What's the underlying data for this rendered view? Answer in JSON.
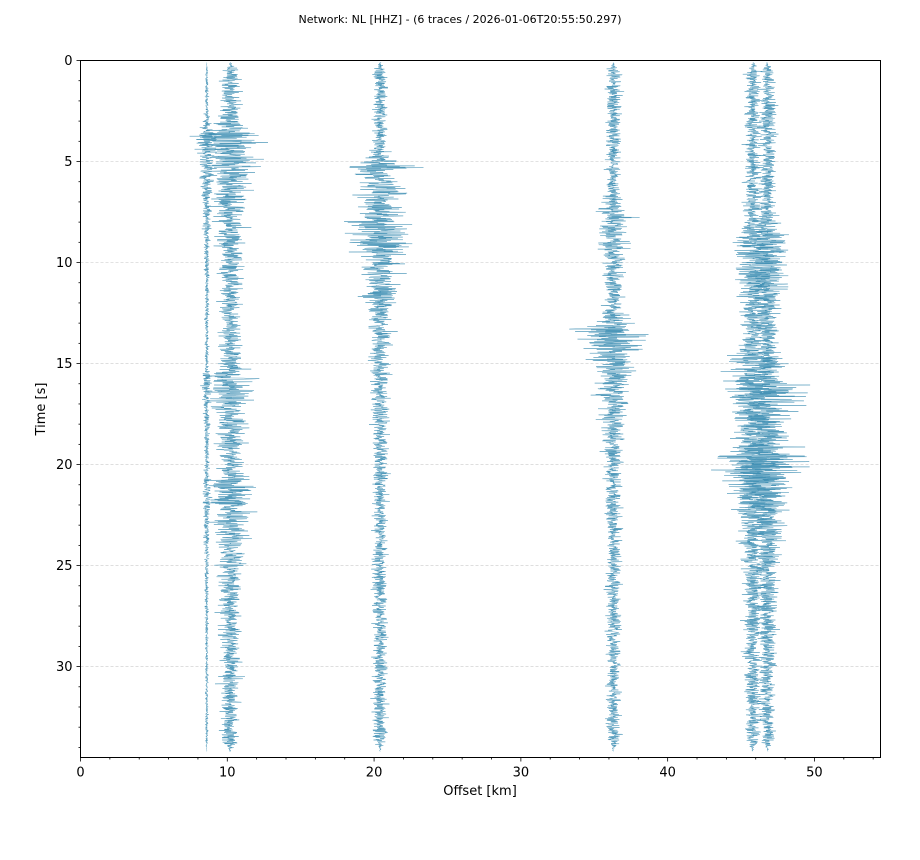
{
  "chart_data": {
    "type": "line",
    "title": "Network: NL [HHZ] - (6 traces / 2026-01-06T20:55:50.297)",
    "xlabel": "Offset [km]",
    "ylabel": "Time [s]",
    "xlim": [
      0,
      54.5
    ],
    "ylim": [
      34.5,
      0
    ],
    "y_inverted": true,
    "xticks": [
      0,
      10,
      20,
      30,
      40,
      50
    ],
    "yticks": [
      0,
      5,
      10,
      15,
      20,
      25,
      30
    ],
    "x_minor_step": 2,
    "y_minor_step": 1,
    "grid": "horizontal",
    "legend": "none",
    "trace_color": "#3f8fb4",
    "series": [
      {
        "offset": 8.6,
        "amplitude": 0.2,
        "bursts": [
          {
            "t": 3.6,
            "amp": 1.6
          },
          {
            "t": 15.5,
            "amp": 0.55
          },
          {
            "t": 21.0,
            "amp": 0.4
          }
        ]
      },
      {
        "offset": 10.2,
        "amplitude": 1.3,
        "bursts": [
          {
            "t": 3.6,
            "amp": 4.0
          },
          {
            "t": 15.5,
            "amp": 2.0
          },
          {
            "t": 21.0,
            "amp": 2.2
          }
        ]
      },
      {
        "offset": 20.4,
        "amplitude": 1.0,
        "bursts": [
          {
            "t": 5.2,
            "amp": 3.0
          },
          {
            "t": 7.9,
            "amp": 3.5
          }
        ]
      },
      {
        "offset": 36.3,
        "amplitude": 1.0,
        "bursts": [
          {
            "t": 7.5,
            "amp": 2.0
          },
          {
            "t": 13.2,
            "amp": 4.0
          }
        ]
      },
      {
        "offset": 45.8,
        "amplitude": 1.1,
        "bursts": [
          {
            "t": 8.7,
            "amp": 2.5
          },
          {
            "t": 14.8,
            "amp": 3.5
          },
          {
            "t": 19.5,
            "amp": 3.0
          }
        ]
      },
      {
        "offset": 46.8,
        "amplitude": 1.1,
        "bursts": [
          {
            "t": 8.7,
            "amp": 2.5
          },
          {
            "t": 16.0,
            "amp": 4.5
          },
          {
            "t": 19.5,
            "amp": 3.0
          }
        ]
      }
    ]
  }
}
